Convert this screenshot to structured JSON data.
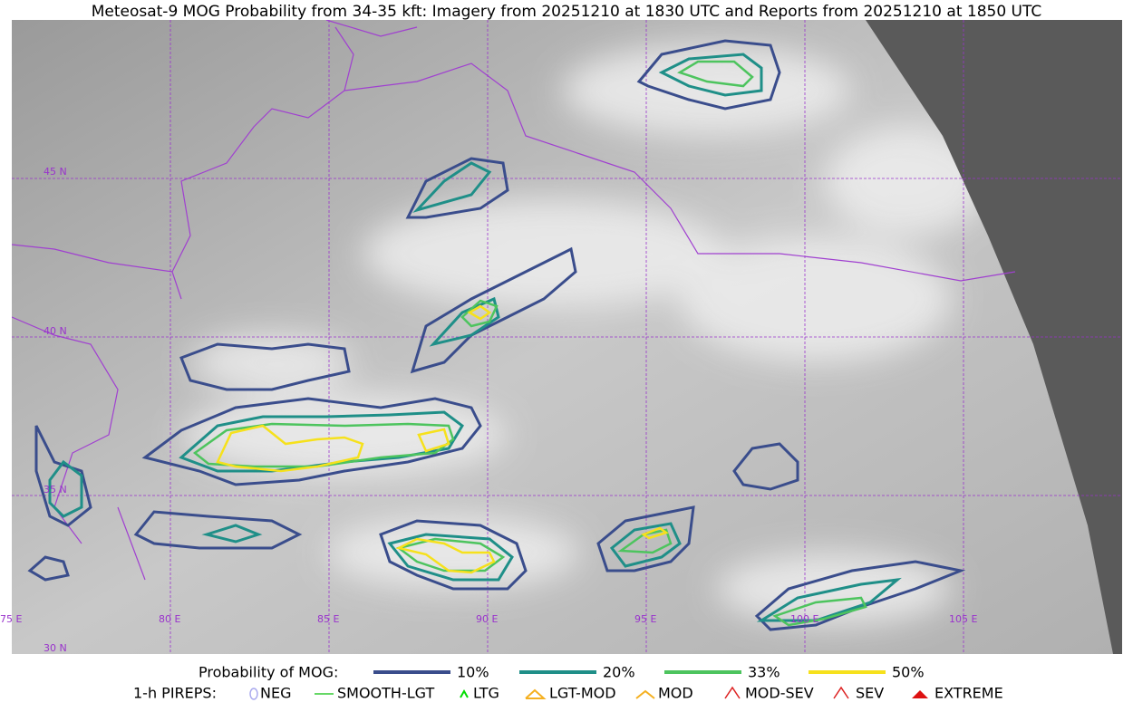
{
  "header": {
    "title": "Meteosat-9 MOG Probability from 34-35 kft: Imagery from 20251210 at 1830 UTC and Reports from 20251210 at 1850 UTC"
  },
  "map": {
    "lat_labels": [
      "45 N",
      "40 N",
      "35 N",
      "30 N"
    ],
    "lon_labels": [
      "75 E",
      "80 E",
      "85 E",
      "90 E",
      "95 E",
      "100 E",
      "105 E"
    ]
  },
  "legend": {
    "probability": {
      "label": "Probability of MOG:",
      "items": [
        {
          "label": "10%",
          "color": "#3a4d8c"
        },
        {
          "label": "20%",
          "color": "#1f8f88"
        },
        {
          "label": "33%",
          "color": "#4dc45e"
        },
        {
          "label": "50%",
          "color": "#f6e11c"
        }
      ]
    },
    "pireps": {
      "label": "1-h PIREPS:",
      "items": [
        "NEG",
        "SMOOTH-LGT",
        "LTG",
        "LGT-MOD",
        "MOD",
        "MOD-SEV",
        "SEV",
        "EXTREME"
      ]
    }
  }
}
